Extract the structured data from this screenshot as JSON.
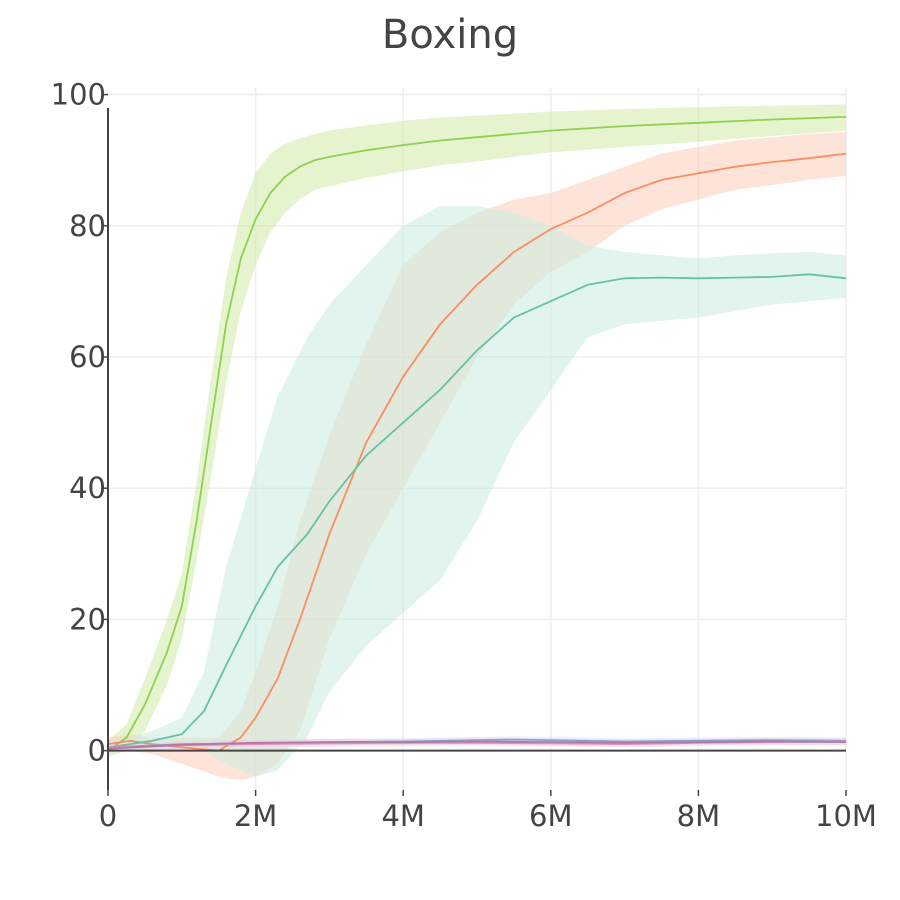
{
  "chart_data": {
    "type": "line",
    "title": "Boxing",
    "xlabel": "",
    "ylabel": "",
    "xlim": [
      0,
      10000000
    ],
    "ylim": [
      -6,
      101
    ],
    "x_ticks": [
      0,
      2000000,
      4000000,
      6000000,
      8000000,
      10000000
    ],
    "x_tick_labels": [
      "0",
      "2M",
      "4M",
      "6M",
      "8M",
      "10M"
    ],
    "y_ticks": [
      0,
      20,
      40,
      60,
      80,
      100
    ],
    "y_tick_labels": [
      "0",
      "20",
      "40",
      "60",
      "80",
      "100"
    ],
    "grid": true,
    "legend": "none",
    "series": [
      {
        "color": "#8fd14f",
        "band_color": "#cfeaa8",
        "x": [
          0,
          250000,
          500000,
          800000,
          1000000,
          1200000,
          1400000,
          1600000,
          1800000,
          2000000,
          2200000,
          2400000,
          2600000,
          2800000,
          3000000,
          3500000,
          4000000,
          4500000,
          5000000,
          5500000,
          6000000,
          7000000,
          8000000,
          9000000,
          10000000
        ],
        "y": [
          0,
          2,
          7,
          15,
          22,
          35,
          50,
          65,
          75,
          81,
          85,
          87.5,
          89,
          90,
          90.5,
          91.5,
          92.3,
          93,
          93.5,
          94,
          94.5,
          95.2,
          95.7,
          96.2,
          96.6
        ],
        "lower": [
          -1,
          0,
          3,
          10,
          17,
          29,
          42,
          56,
          67,
          74,
          79,
          82,
          84,
          85.5,
          86,
          87.3,
          88.3,
          89.2,
          89.8,
          90.5,
          91.2,
          92,
          92.8,
          93.7,
          94.5
        ],
        "upper": [
          1.5,
          4,
          11,
          20,
          27,
          41,
          57,
          72,
          82,
          88,
          91,
          92.5,
          93.3,
          94,
          94.5,
          95.3,
          96,
          96.5,
          96.8,
          97.1,
          97.4,
          97.8,
          98.1,
          98.3,
          98.5
        ]
      },
      {
        "color": "#fc8d62",
        "band_color": "#fdcdb8",
        "x": [
          0,
          300000,
          600000,
          1000000,
          1500000,
          1800000,
          2000000,
          2300000,
          2600000,
          3000000,
          3500000,
          4000000,
          4500000,
          5000000,
          5500000,
          6000000,
          6500000,
          7000000,
          7500000,
          8000000,
          8500000,
          9000000,
          9500000,
          10000000
        ],
        "y": [
          1,
          1.5,
          1,
          0.5,
          0,
          2,
          5,
          11,
          20,
          33,
          47,
          57,
          65,
          71,
          76,
          79.5,
          82,
          85,
          87,
          88,
          89,
          89.7,
          90.3,
          91
        ],
        "lower": [
          0,
          0,
          -0.5,
          -2,
          -4,
          -4.5,
          -4,
          -2,
          3,
          17,
          30,
          40,
          50,
          60,
          68,
          73,
          76,
          80,
          82.5,
          84,
          85.5,
          86.2,
          87,
          87.6
        ],
        "upper": [
          2,
          2.5,
          2,
          2,
          2,
          6,
          12,
          22,
          35,
          48,
          62,
          74,
          79,
          82,
          84,
          85,
          87,
          89,
          91,
          92,
          93,
          93.5,
          94,
          94.3
        ]
      },
      {
        "color": "#66c2a5",
        "band_color": "#c8ebe0",
        "x": [
          0,
          300000,
          600000,
          1000000,
          1300000,
          1600000,
          2000000,
          2300000,
          2700000,
          3000000,
          3500000,
          4000000,
          4500000,
          5000000,
          5500000,
          6000000,
          6500000,
          7000000,
          7500000,
          8000000,
          8500000,
          9000000,
          9500000,
          10000000
        ],
        "y": [
          0.5,
          1,
          1.5,
          2.5,
          6,
          13,
          22,
          28,
          33,
          38,
          45,
          50,
          55,
          61,
          66,
          68.5,
          71,
          72,
          72.1,
          72,
          72.1,
          72.2,
          72.6,
          72
        ],
        "lower": [
          -0.5,
          0,
          0,
          0,
          0,
          -2,
          -4,
          -3,
          2,
          9,
          16,
          21,
          26,
          35,
          47,
          55,
          63,
          65,
          65.5,
          66,
          67,
          68,
          68.5,
          69
        ],
        "upper": [
          1.5,
          2,
          3,
          5,
          12,
          28,
          43,
          54,
          63,
          68,
          74,
          80,
          83,
          83,
          82,
          80,
          77,
          76,
          75.5,
          75,
          75.5,
          75.8,
          76,
          75.5
        ]
      },
      {
        "color": "#8da0cb",
        "band_color": "#dfe4f1",
        "x": [
          0,
          1000000,
          2000000,
          3000000,
          4000000,
          5000000,
          5500000,
          6000000,
          7000000,
          8000000,
          9000000,
          10000000
        ],
        "y": [
          0.5,
          1,
          1.1,
          1.3,
          1.4,
          1.6,
          1.7,
          1.6,
          1.4,
          1.5,
          1.6,
          1.5
        ],
        "lower": [
          0,
          0.5,
          0.6,
          0.8,
          0.9,
          1.1,
          1.2,
          1.1,
          0.9,
          1,
          1.1,
          1
        ],
        "upper": [
          1,
          1.5,
          1.6,
          1.8,
          1.9,
          2.1,
          2.2,
          2.1,
          1.9,
          2,
          2.1,
          2
        ]
      },
      {
        "color": "#e78ac3",
        "band_color": "#f6d7ea",
        "x": [
          0,
          1000000,
          2000000,
          3000000,
          4000000,
          5000000,
          6000000,
          7000000,
          8000000,
          9000000,
          10000000
        ],
        "y": [
          0.5,
          0.8,
          1,
          1.1,
          1.2,
          1.2,
          1.1,
          1,
          1.2,
          1.3,
          1.4
        ],
        "lower": [
          0,
          0.3,
          0.5,
          0.6,
          0.7,
          0.7,
          0.6,
          0.5,
          0.7,
          0.8,
          0.9
        ],
        "upper": [
          1,
          1.3,
          1.5,
          1.6,
          1.7,
          1.7,
          1.6,
          1.5,
          1.7,
          1.8,
          1.9
        ]
      },
      {
        "color": "#b07aa1",
        "band_color": "#e6d3e2",
        "x": [
          0,
          1000000,
          2000000,
          3000000,
          4000000,
          5000000,
          6000000,
          7000000,
          8000000,
          9000000,
          10000000
        ],
        "y": [
          0.3,
          0.9,
          1.2,
          1.3,
          1.3,
          1.4,
          1.3,
          1.2,
          1.3,
          1.4,
          1.3
        ],
        "lower": [
          -0.2,
          0.4,
          0.7,
          0.8,
          0.8,
          0.9,
          0.8,
          0.7,
          0.8,
          0.9,
          0.8
        ],
        "upper": [
          0.8,
          1.4,
          1.7,
          1.8,
          1.8,
          1.9,
          1.8,
          1.7,
          1.8,
          1.9,
          1.8
        ]
      }
    ]
  }
}
